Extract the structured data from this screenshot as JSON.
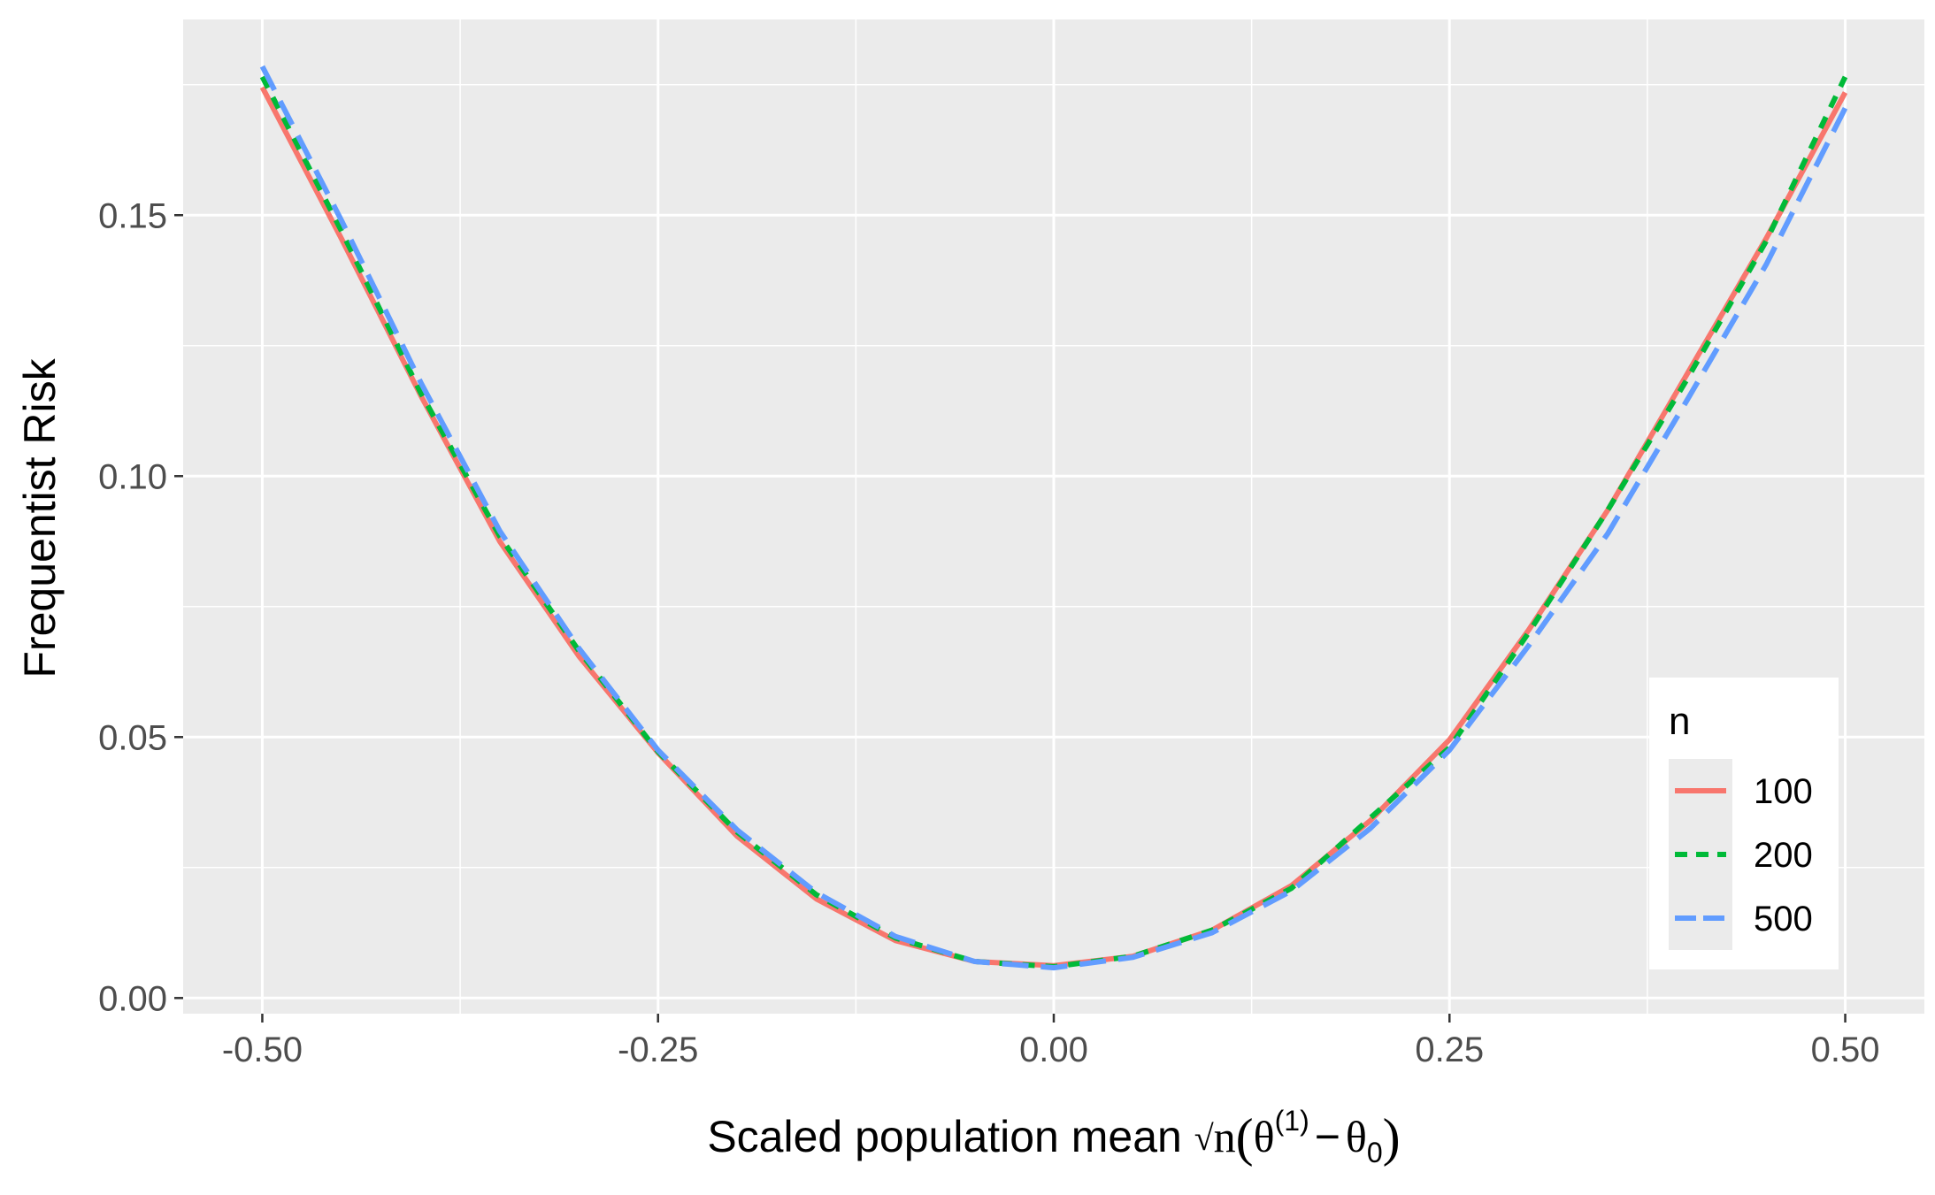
{
  "chart_data": {
    "type": "line",
    "title": "",
    "xlabel": {
      "prefix": "Scaled population mean ",
      "sqrt_arg": "n",
      "open_paren": "(",
      "theta": "θ",
      "theta_superscript": "(1)",
      "minus": "−",
      "theta0": "θ",
      "theta0_subscript": "0",
      "close_paren": ")"
    },
    "ylabel": "Frequentist Risk",
    "xlim": [
      -0.55,
      0.55
    ],
    "ylim": [
      -0.003,
      0.1875
    ],
    "x_major_ticks": [
      -0.5,
      -0.25,
      0.0,
      0.25,
      0.5
    ],
    "x_tick_labels": [
      "-0.50",
      "-0.25",
      "0.00",
      "0.25",
      "0.50"
    ],
    "x_minor_ticks": [
      -0.375,
      -0.125,
      0.125,
      0.375
    ],
    "y_major_ticks": [
      0.0,
      0.05,
      0.1,
      0.15
    ],
    "y_tick_labels": [
      "0.00",
      "0.05",
      "0.10",
      "0.15"
    ],
    "y_minor_ticks": [
      0.025,
      0.075,
      0.125,
      0.175
    ],
    "grid": true,
    "legend": {
      "title": "n",
      "position": "bottom-right inside"
    },
    "x": [
      -0.5,
      -0.45,
      -0.4,
      -0.35,
      -0.3,
      -0.25,
      -0.2,
      -0.15,
      -0.1,
      -0.05,
      0.0,
      0.05,
      0.1,
      0.15,
      0.2,
      0.25,
      0.3,
      0.35,
      0.4,
      0.45,
      0.5
    ],
    "series": [
      {
        "name": "100",
        "color": "#F8766D",
        "dash": "solid",
        "values": [
          0.1745,
          0.1455,
          0.1155,
          0.0875,
          0.0655,
          0.047,
          0.031,
          0.019,
          0.011,
          0.007,
          0.0062,
          0.008,
          0.013,
          0.0215,
          0.034,
          0.0495,
          0.0705,
          0.0935,
          0.1195,
          0.1455,
          0.1735
        ]
      },
      {
        "name": "200",
        "color": "#00BA38",
        "dash": "dashed",
        "values": [
          0.1765,
          0.147,
          0.116,
          0.0885,
          0.0665,
          0.0472,
          0.0318,
          0.0198,
          0.0115,
          0.007,
          0.006,
          0.008,
          0.013,
          0.021,
          0.0345,
          0.048,
          0.07,
          0.0935,
          0.1185,
          0.145,
          0.1765
        ]
      },
      {
        "name": "500",
        "color": "#619CFF",
        "dash": "longdash",
        "values": [
          0.1785,
          0.149,
          0.118,
          0.0895,
          0.067,
          0.0475,
          0.0322,
          0.0202,
          0.0118,
          0.007,
          0.0058,
          0.0078,
          0.0125,
          0.0205,
          0.0325,
          0.0475,
          0.0675,
          0.089,
          0.1145,
          0.1405,
          0.1705
        ]
      }
    ]
  }
}
